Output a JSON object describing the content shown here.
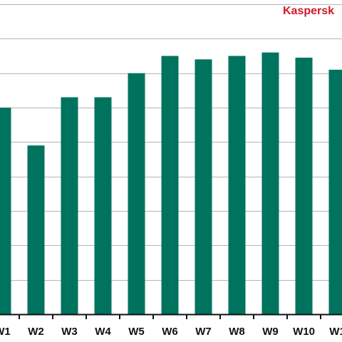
{
  "brand": {
    "text": "Kaspersk",
    "color": "#d0192a"
  },
  "colors": {
    "bar": "#00735f",
    "grid": "#b5b5b5",
    "axis": "#111111"
  },
  "chart_data": {
    "type": "bar",
    "title": "",
    "xlabel": "",
    "ylabel": "",
    "categories": [
      "W1",
      "W2",
      "W3",
      "W4",
      "W5",
      "W6",
      "W7",
      "W8",
      "W9",
      "W10",
      "W1"
    ],
    "values": [
      6.0,
      4.9,
      6.3,
      6.3,
      7.0,
      7.5,
      7.4,
      7.5,
      7.6,
      7.45,
      7.1
    ],
    "ylim": [
      0,
      9
    ],
    "grid": true,
    "legend": "none"
  }
}
